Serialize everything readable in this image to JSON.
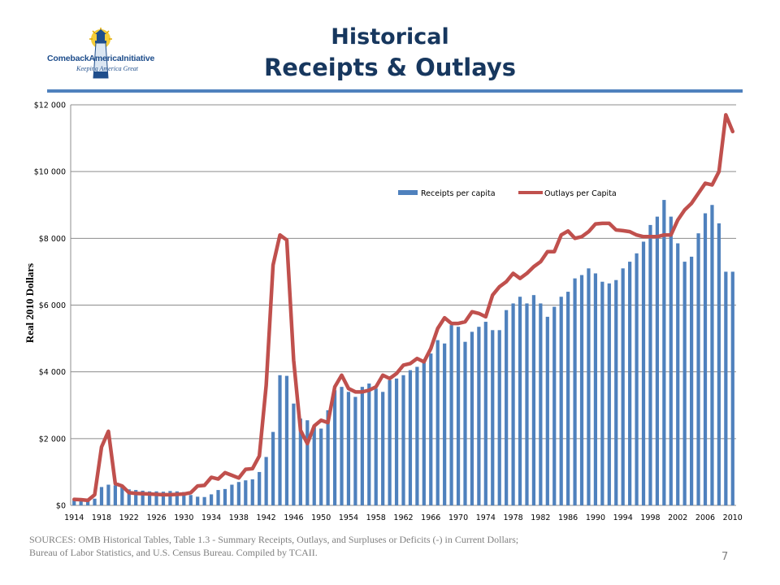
{
  "logo": {
    "name": "ComebackAmericaInitiative",
    "tagline": "Keeping America Great"
  },
  "title": {
    "line1": "Historical",
    "line2": "Receipts & Outlays"
  },
  "colors": {
    "title": "#17375e",
    "divider": "#4f81bd",
    "bars": "#4f81bd",
    "line": "#c0504d",
    "grid": "#8c8c8c"
  },
  "sources": {
    "line1": "SOURCES: OMB Historical Tables, Table 1.3 - Summary Receipts, Outlays, and Surpluses or Deficits (-) in Current Dollars;",
    "line2": "Bureau of Labor Statistics,  and U.S. Census Bureau. Compiled by TCAII."
  },
  "page_number": "7",
  "chart_data": {
    "type": "bar",
    "ylabel": "Real 2010 Dollars",
    "xlabel": "",
    "ylim": [
      0,
      12000
    ],
    "yticks": [
      0,
      2000,
      4000,
      6000,
      8000,
      10000,
      12000
    ],
    "ytick_labels": [
      "$0",
      "$2 000",
      "$4 000",
      "$6 000",
      "$8 000",
      "$10 000",
      "$12 000"
    ],
    "xtick_labels": [
      "1914",
      "1918",
      "1922",
      "1926",
      "1930",
      "1934",
      "1938",
      "1942",
      "1946",
      "1950",
      "1954",
      "1958",
      "1962",
      "1966",
      "1970",
      "1974",
      "1978",
      "1982",
      "1986",
      "1990",
      "1994",
      "1998",
      "2002",
      "2006",
      "2010"
    ],
    "grid": true,
    "legend_position": "top-center",
    "x": [
      1914,
      1915,
      1916,
      1917,
      1918,
      1919,
      1920,
      1921,
      1922,
      1923,
      1924,
      1925,
      1926,
      1927,
      1928,
      1929,
      1930,
      1931,
      1932,
      1933,
      1934,
      1935,
      1936,
      1937,
      1938,
      1939,
      1940,
      1941,
      1942,
      1943,
      1944,
      1945,
      1946,
      1947,
      1948,
      1949,
      1950,
      1951,
      1952,
      1953,
      1954,
      1955,
      1956,
      1957,
      1958,
      1959,
      1960,
      1961,
      1962,
      1963,
      1964,
      1965,
      1966,
      1967,
      1968,
      1969,
      1970,
      1971,
      1972,
      1973,
      1974,
      1975,
      1976,
      1977,
      1978,
      1979,
      1980,
      1981,
      1982,
      1983,
      1984,
      1985,
      1986,
      1987,
      1988,
      1989,
      1990,
      1991,
      1992,
      1993,
      1994,
      1995,
      1996,
      1997,
      1998,
      1999,
      2000,
      2001,
      2002,
      2003,
      2004,
      2005,
      2006,
      2007,
      2008,
      2009,
      2010
    ],
    "series": [
      {
        "name": "Receipts per capita",
        "kind": "bar",
        "values": [
          150,
          140,
          130,
          200,
          550,
          620,
          600,
          560,
          480,
          460,
          440,
          420,
          420,
          410,
          430,
          420,
          400,
          310,
          260,
          250,
          330,
          460,
          490,
          620,
          700,
          750,
          780,
          1000,
          1450,
          2200,
          3900,
          3880,
          3050,
          2600,
          2550,
          2350,
          2300,
          2850,
          3450,
          3550,
          3400,
          3250,
          3550,
          3650,
          3500,
          3400,
          3750,
          3800,
          3900,
          4050,
          4150,
          4300,
          4550,
          4950,
          4850,
          5400,
          5350,
          4900,
          5200,
          5350,
          5500,
          5250,
          5250,
          5850,
          6050,
          6250,
          6050,
          6300,
          6050,
          5650,
          5950,
          6250,
          6400,
          6800,
          6900,
          7100,
          6950,
          6700,
          6650,
          6750,
          7100,
          7300,
          7550,
          7900,
          8400,
          8650,
          9150,
          8650,
          7850,
          7300,
          7450,
          8150,
          8750,
          9000,
          8450,
          7000,
          7000
        ]
      },
      {
        "name": "Outlays per Capita",
        "kind": "line",
        "values": [
          180,
          170,
          150,
          320,
          1750,
          2220,
          650,
          580,
          380,
          360,
          350,
          340,
          330,
          320,
          320,
          330,
          340,
          380,
          580,
          600,
          840,
          790,
          980,
          900,
          820,
          1080,
          1100,
          1480,
          3600,
          7200,
          8100,
          7950,
          4350,
          2250,
          1850,
          2380,
          2550,
          2480,
          3550,
          3900,
          3500,
          3400,
          3400,
          3450,
          3550,
          3900,
          3800,
          3950,
          4200,
          4250,
          4400,
          4300,
          4700,
          5300,
          5620,
          5450,
          5450,
          5500,
          5800,
          5750,
          5650,
          6300,
          6550,
          6700,
          6950,
          6800,
          6950,
          7150,
          7300,
          7600,
          7600,
          8100,
          8220,
          8000,
          8050,
          8200,
          8430,
          8450,
          8450,
          8250,
          8230,
          8200,
          8100,
          8050,
          8050,
          8050,
          8100,
          8100,
          8550,
          8850,
          9050,
          9350,
          9650,
          9600,
          10000,
          11700,
          11200
        ]
      }
    ]
  }
}
